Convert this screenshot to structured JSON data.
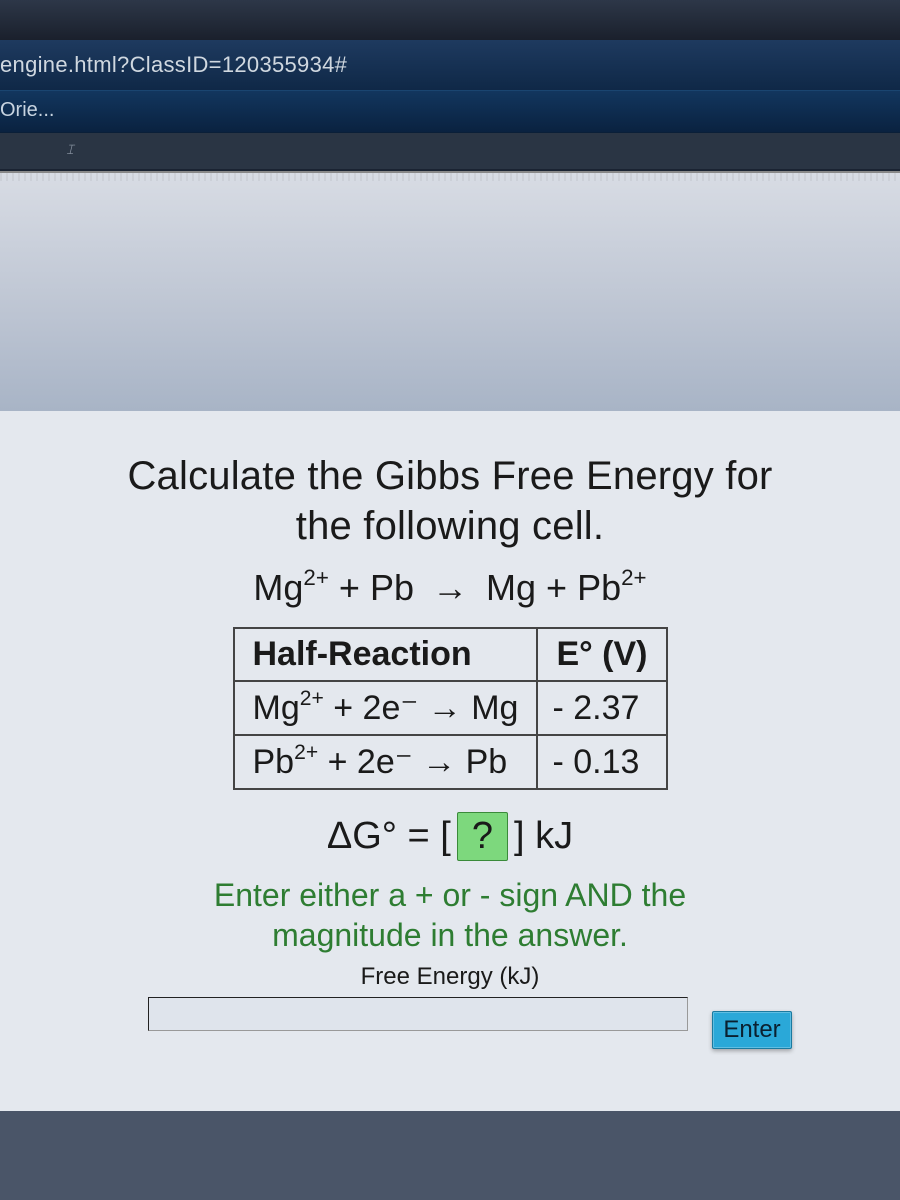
{
  "browser": {
    "url_fragment": "engine.html?ClassID=120355934#",
    "bookmark_label": "Orie...",
    "colors": {
      "url_bar_bg_top": "#1e3a5f",
      "url_bar_bg_bottom": "#0f2847",
      "url_text": "#d0d8e0",
      "bookmark_text": "#c8d4e0"
    }
  },
  "problem": {
    "title_line1": "Calculate the Gibbs Free Energy for",
    "title_line2": "the following cell.",
    "equation_lhs_species1": "Mg",
    "equation_lhs_species1_charge": "2+",
    "equation_lhs_species2": "Pb",
    "equation_rhs_species1": "Mg",
    "equation_rhs_species2": "Pb",
    "equation_rhs_species2_charge": "2+",
    "arrow": "→",
    "plus": "+",
    "table": {
      "header_reaction": "Half-Reaction",
      "header_potential": "E° (V)",
      "rows": [
        {
          "species_ion": "Mg",
          "ion_charge": "2+",
          "electrons": "2e⁻",
          "product": "Mg",
          "potential": "- 2.37"
        },
        {
          "species_ion": "Pb",
          "ion_charge": "2+",
          "electrons": "2e⁻",
          "product": "Pb",
          "potential": "- 0.13"
        }
      ],
      "border_color": "#444444",
      "font_size_pt": 26
    },
    "delta_g_symbol": "ΔG°",
    "equals": "=",
    "answer_placeholder": "?",
    "unit": "kJ",
    "instruction_line1": "Enter either a + or - sign AND the",
    "instruction_line2": "magnitude in the answer.",
    "input_label": "Free Energy (kJ)",
    "enter_button_label": "Enter",
    "colors": {
      "content_bg": "#e4e8ee",
      "text": "#1a1a1a",
      "instruction_green": "#2e7d32",
      "answer_box_bg": "#7dd87d",
      "answer_box_border": "#3a8a3a",
      "enter_btn_bg": "#2aa8d8",
      "enter_btn_text": "#0a2030"
    },
    "fonts": {
      "title_size_pt": 30,
      "equation_size_pt": 27,
      "delta_g_size_pt": 28,
      "instruction_size_pt": 24,
      "input_label_size_pt": 18
    }
  }
}
